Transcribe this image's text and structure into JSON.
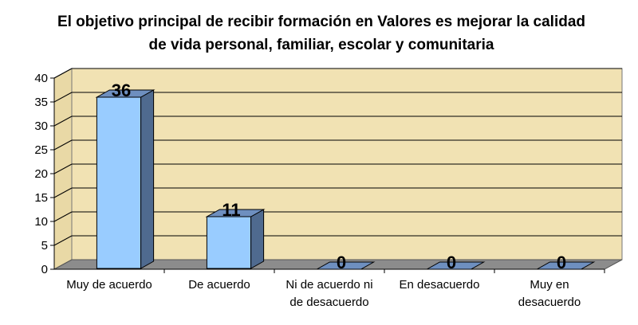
{
  "chart_data": {
    "type": "bar",
    "title_lines": [
      "El objetivo principal de recibir formación en Valores es mejorar la calidad",
      "de vida personal, familiar, escolar y comunitaria"
    ],
    "categories": [
      [
        "Muy de acuerdo"
      ],
      [
        "De acuerdo"
      ],
      [
        "Ni de acuerdo ni",
        "de desacuerdo"
      ],
      [
        "En desacuerdo"
      ],
      [
        "Muy en",
        "desacuerdo"
      ]
    ],
    "values": [
      36,
      11,
      0,
      0,
      0
    ],
    "ylim": [
      0,
      40
    ],
    "yticks": [
      "0",
      "5",
      "10",
      "15",
      "20",
      "25",
      "30",
      "35",
      "40"
    ],
    "grid": true,
    "legend": "none",
    "colors": {
      "bar_front": "#99ccff",
      "bar_side": "#4f6a8f",
      "bar_top": "#6e8fbf",
      "wall": "#f1e2b3",
      "floor": "#8c8c8c",
      "grid": "#000000"
    }
  }
}
